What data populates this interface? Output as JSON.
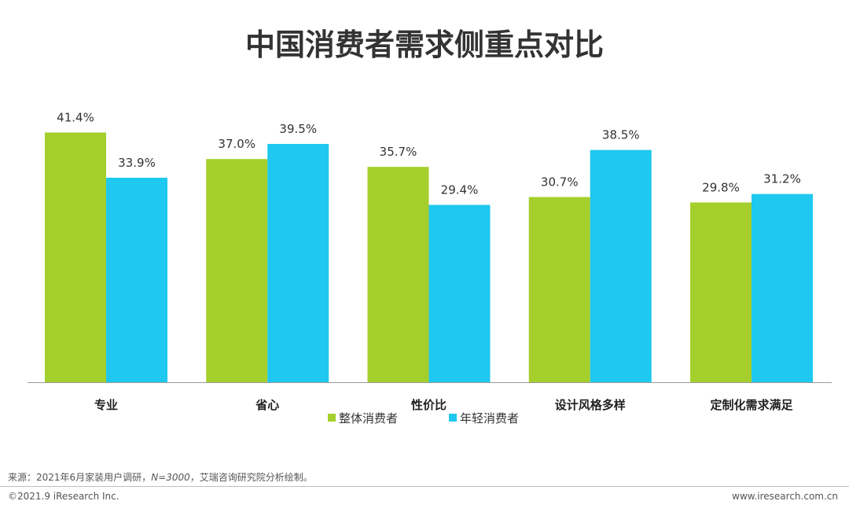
{
  "chart_data": {
    "type": "bar",
    "title": "中国消费者需求侧重点对比",
    "categories": [
      "专业",
      "省心",
      "性价比",
      "设计风格多样",
      "定制化需求满足"
    ],
    "series": [
      {
        "name": "整体消费者",
        "values": [
          41.4,
          37.0,
          35.7,
          30.7,
          29.8
        ],
        "labels": [
          "41.4%",
          "37.0%",
          "35.7%",
          "30.7%",
          "29.8%"
        ],
        "color": "#a5cf2c"
      },
      {
        "name": "年轻消费者",
        "values": [
          33.9,
          39.5,
          29.4,
          38.5,
          31.2
        ],
        "labels": [
          "33.9%",
          "39.5%",
          "29.4%",
          "38.5%",
          "31.2%"
        ],
        "color": "#1ec8ef"
      }
    ],
    "ylim": [
      0,
      40
    ],
    "grid": false,
    "legend": "bottom"
  },
  "footer": {
    "source_prefix": "来源：2021年6月家装用户调研，",
    "source_n": "N=3000",
    "source_suffix": "，艾瑞咨询研究院分析绘制。",
    "copyright": "©2021.9 iResearch Inc.",
    "website": "www.iresearch.com.cn"
  },
  "colors": {
    "axis": "#9a9a9a"
  }
}
